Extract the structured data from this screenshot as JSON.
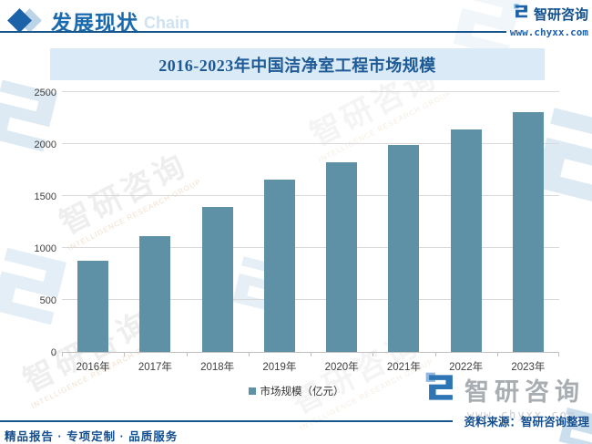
{
  "header": {
    "section_title": "发展现状",
    "section_subtitle": "Chain",
    "brand_name": "智研咨询",
    "brand_url": "www.chyxx.com"
  },
  "chart_data": {
    "type": "bar",
    "title": "2016-2023年中国洁净室工程市场规模",
    "categories": [
      "2016年",
      "2017年",
      "2018年",
      "2019年",
      "2020年",
      "2021年",
      "2022年",
      "2023年"
    ],
    "values": [
      875,
      1110,
      1395,
      1655,
      1825,
      1990,
      2140,
      2310
    ],
    "series_name": "市场规模（亿元）",
    "xlabel": "",
    "ylabel": "",
    "ylim": [
      0,
      2500
    ],
    "yticks": [
      0,
      500,
      1000,
      1500,
      2000,
      2500
    ],
    "grid": true,
    "legend_position": "bottom",
    "bar_color": "#5e91a6"
  },
  "legend": {
    "label": "市场规模（亿元）"
  },
  "footer": {
    "left_text": "精品报告 · 专项定制 · 品质服务",
    "source_text": "资料来源：智研咨询整理",
    "brand_name": "智研咨询",
    "brand_url": "www.chyxx.com"
  },
  "watermark": {
    "text": "智研咨询",
    "subtext": "INTELLIGENCE RESEARCH GROUP"
  },
  "colors": {
    "bar": "#5e91a6",
    "accent_blue": "#1a6aae",
    "dark_rule": "#16568c",
    "title_band_bg": "#daeaf6",
    "title_text": "#1d5a96",
    "gridline": "#d9d9d9",
    "axis": "#bfbfbf"
  }
}
